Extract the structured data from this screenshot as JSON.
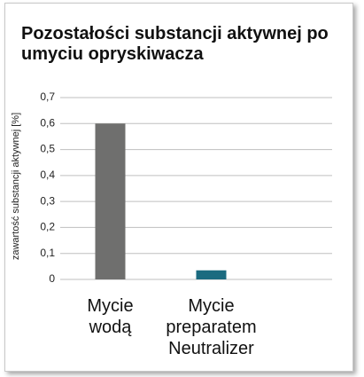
{
  "chart_data": {
    "type": "bar",
    "title": "Pozostałości substancji aktywnej po umyciu opryskiwacza",
    "y_label": "zawartość substancji aktywnej [%]",
    "categories": [
      "Mycie wodą",
      "Mycie preparatem Neutralizer"
    ],
    "values": [
      0.6,
      0.035
    ],
    "colors": [
      "#6f6f6e",
      "#1b6b80"
    ],
    "ylim": [
      0,
      0.7
    ],
    "yticks": [
      0,
      {
        "value": 0.1,
        "label": "0,1"
      },
      {
        "value": 0.2,
        "label": "0,2"
      },
      {
        "value": 0.3,
        "label": "0,3"
      },
      {
        "value": 0.4,
        "label": "0,4"
      },
      {
        "value": 0.5,
        "label": "0,5"
      },
      {
        "value": 0.6,
        "label": "0,6"
      },
      {
        "value": 0.7,
        "label": "0,7"
      }
    ],
    "grid": true
  }
}
